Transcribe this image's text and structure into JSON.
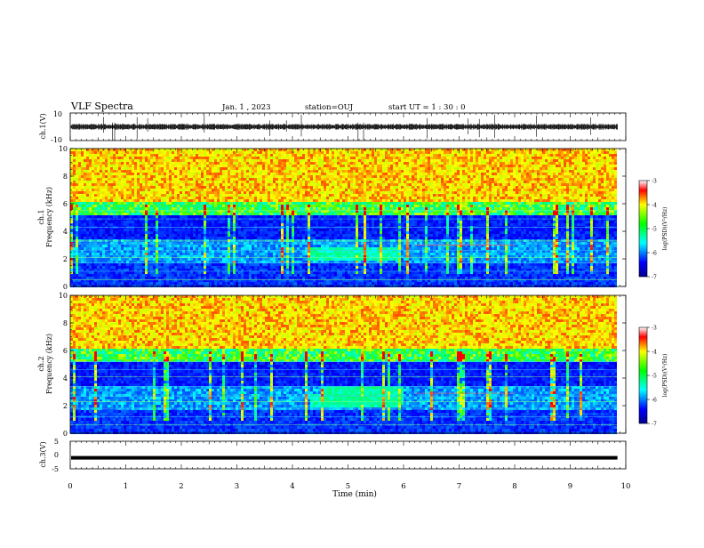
{
  "header": {
    "title": "VLF Spectra",
    "date": "Jan. 1 , 2023",
    "station": "station=OUJ",
    "start_ut": "start UT = 1 : 30 : 0"
  },
  "chart_data": [
    {
      "type": "line",
      "panel": "ch1-waveform",
      "ylabel": "ch.1(V)",
      "y_tick_labels": [
        "10",
        "-10"
      ],
      "ylim": [
        -10,
        10
      ],
      "signal": "noise waveform around ~0 V with amplitude ~±2 V and occasional spikes to ~±10 V"
    },
    {
      "type": "heatmap",
      "panel": "ch1-spectrogram",
      "ylabel": "ch.1\nFrequency (kHz)",
      "ylim": [
        0,
        10
      ],
      "y_ticks": [
        "0",
        "2",
        "4",
        "6",
        "8",
        "10"
      ],
      "colorbar": {
        "label": "log(PSD)(V²/Hz)",
        "range": [
          -7,
          -3
        ],
        "ticks": [
          "-3",
          "-4",
          "-5",
          "-6",
          "-7"
        ]
      }
    },
    {
      "type": "heatmap",
      "panel": "ch2-spectrogram",
      "ylabel": "ch.2\nFrequency (kHz)",
      "ylim": [
        0,
        10
      ],
      "y_ticks": [
        "0",
        "2",
        "4",
        "6",
        "8",
        "10"
      ],
      "colorbar": {
        "label": "log(PSD)(V²/Hz)",
        "range": [
          -7,
          -3
        ],
        "ticks": [
          "-3",
          "-4",
          "-5",
          "-6",
          "-7"
        ]
      }
    },
    {
      "type": "line",
      "panel": "ch3-waveform",
      "ylabel": "ch.3(V)",
      "y_tick_labels": [
        "5",
        "0",
        "-5"
      ],
      "ylim": [
        -5,
        5
      ],
      "signal": "flat line at about -1 V"
    }
  ],
  "x_axis": {
    "label": "Time (min)",
    "range": [
      0,
      10
    ],
    "tick_labels": [
      "0",
      "1",
      "2",
      "3",
      "4",
      "5",
      "6",
      "7",
      "8",
      "9",
      "10"
    ],
    "data_end": 9.85
  },
  "colors": {
    "colormap": [
      "#800000",
      "#ff0000",
      "#ffff00",
      "#00ff00",
      "#00ffff",
      "#0000ff",
      "#00008b"
    ],
    "waveform": "#000000"
  }
}
